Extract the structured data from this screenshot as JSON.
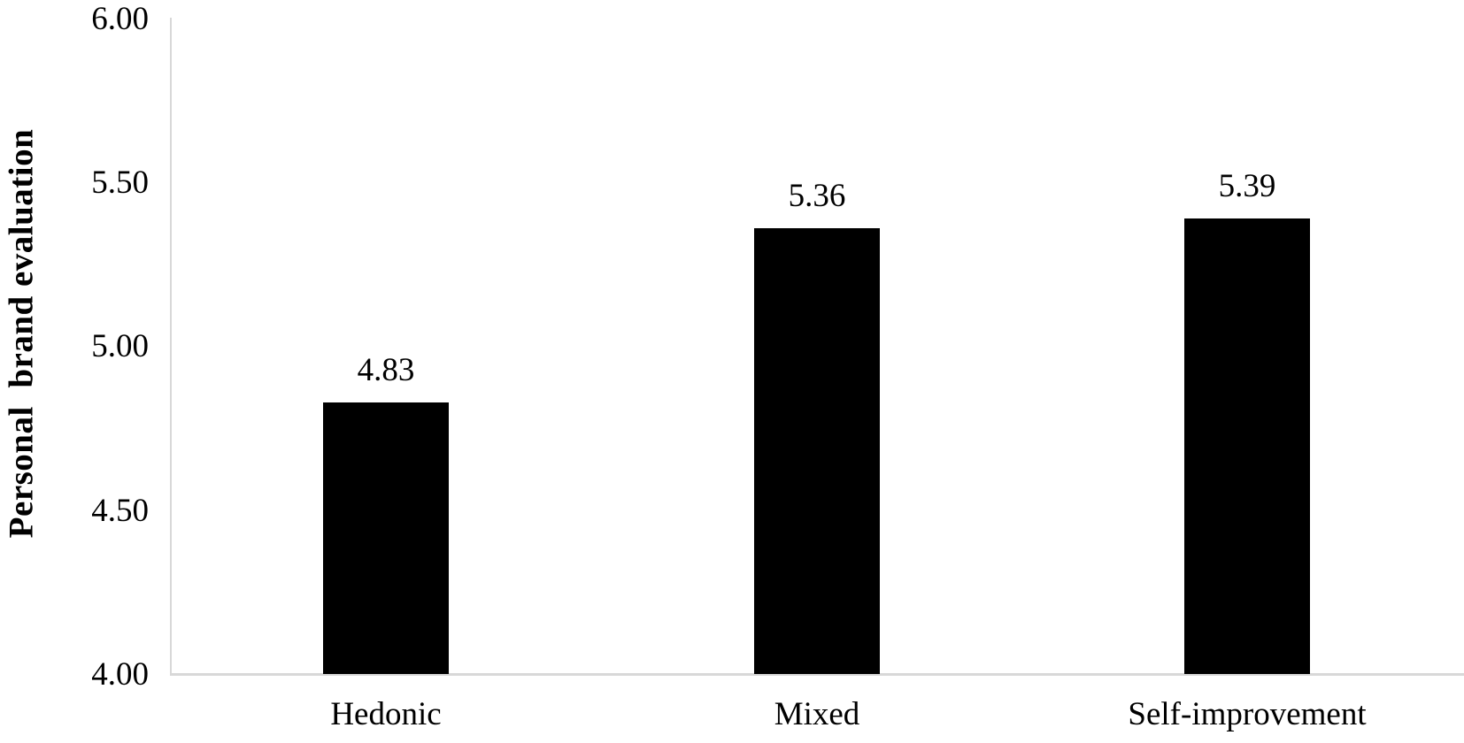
{
  "chart_data": {
    "type": "bar",
    "title": "",
    "ylabel": "Personal  brand evaluation",
    "xlabel": "",
    "categories": [
      "Hedonic",
      "Mixed",
      "Self-improvement"
    ],
    "values": [
      4.83,
      5.36,
      5.39
    ],
    "value_labels": [
      "4.83",
      "5.36",
      "5.39"
    ],
    "ytick_labels": [
      "6.00",
      "5.50",
      "5.00",
      "4.50",
      "4.00"
    ],
    "yticks": [
      6.0,
      5.5,
      5.0,
      4.5,
      4.0
    ],
    "ylim": [
      4.0,
      6.0
    ],
    "grid": false,
    "legend_position": "none",
    "colors": {
      "bar": "#000000",
      "axis_line": "#d8d8d8",
      "text": "#000000",
      "background": "#ffffff"
    }
  }
}
